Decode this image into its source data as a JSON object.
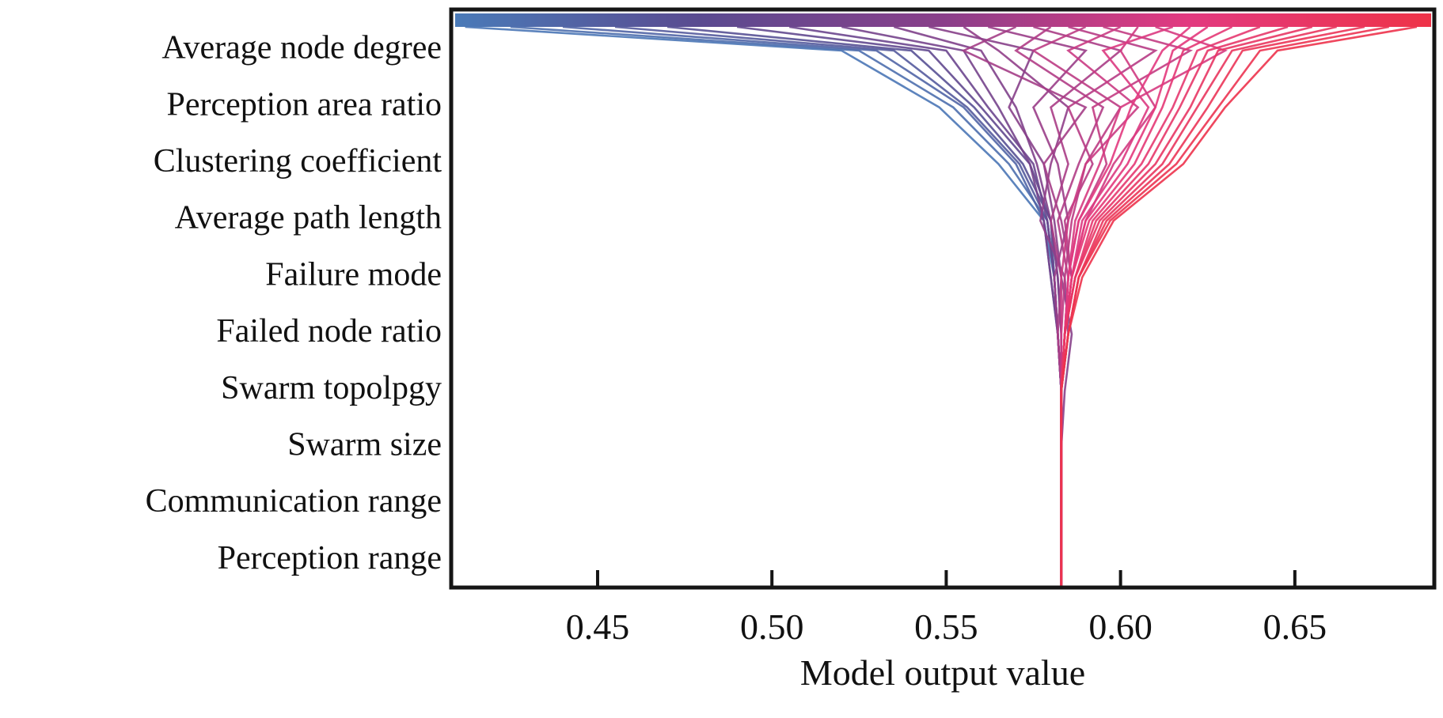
{
  "chart_data": {
    "type": "line",
    "subtype": "decision-plot",
    "title": "",
    "xlabel": "Model output value",
    "ylabel": "",
    "xlim": [
      0.408,
      0.69
    ],
    "xticks": [
      0.45,
      0.5,
      0.55,
      0.6,
      0.65
    ],
    "xtick_labels": [
      "0.45",
      "0.50",
      "0.55",
      "0.60",
      "0.65"
    ],
    "base_value": 0.583,
    "features_top_to_bottom": [
      "Average node degree",
      "Perception area ratio",
      "Clustering coefficient",
      "Average path length",
      "Failure mode",
      "Failed node ratio",
      "Swarm topolpgy",
      "Swarm size",
      "Communication range",
      "Perception range"
    ],
    "colorbar": {
      "position": "top",
      "colors": [
        "#4a7ab8",
        "#5a4b90",
        "#8a3f8a",
        "#e23a80",
        "#ee3348"
      ]
    },
    "grid": false,
    "series_note_order": "each line: final output, then cumulative value at each feature row from top to bottom",
    "lines": [
      [
        0.412,
        0.52,
        0.548,
        0.565,
        0.578,
        0.581,
        0.582,
        0.583,
        0.583,
        0.583,
        0.583
      ],
      [
        0.425,
        0.525,
        0.552,
        0.568,
        0.579,
        0.581,
        0.582,
        0.583,
        0.583,
        0.583,
        0.583
      ],
      [
        0.44,
        0.53,
        0.555,
        0.57,
        0.578,
        0.58,
        0.582,
        0.583,
        0.583,
        0.583,
        0.583
      ],
      [
        0.455,
        0.535,
        0.556,
        0.571,
        0.579,
        0.581,
        0.582,
        0.583,
        0.583,
        0.583,
        0.583
      ],
      [
        0.47,
        0.54,
        0.558,
        0.572,
        0.58,
        0.581,
        0.582,
        0.583,
        0.583,
        0.583,
        0.583
      ],
      [
        0.49,
        0.545,
        0.56,
        0.574,
        0.58,
        0.582,
        0.583,
        0.583,
        0.583,
        0.583,
        0.583
      ],
      [
        0.505,
        0.55,
        0.562,
        0.575,
        0.579,
        0.581,
        0.582,
        0.583,
        0.583,
        0.583,
        0.583
      ],
      [
        0.52,
        0.555,
        0.565,
        0.574,
        0.578,
        0.58,
        0.582,
        0.583,
        0.583,
        0.583,
        0.583
      ],
      [
        0.535,
        0.56,
        0.57,
        0.576,
        0.58,
        0.582,
        0.583,
        0.583,
        0.583,
        0.583,
        0.583
      ],
      [
        0.545,
        0.575,
        0.568,
        0.578,
        0.581,
        0.583,
        0.586,
        0.584,
        0.583,
        0.583,
        0.583
      ],
      [
        0.555,
        0.565,
        0.585,
        0.58,
        0.577,
        0.584,
        0.585,
        0.583,
        0.583,
        0.583,
        0.583
      ],
      [
        0.562,
        0.59,
        0.575,
        0.582,
        0.585,
        0.581,
        0.582,
        0.583,
        0.583,
        0.583,
        0.583
      ],
      [
        0.57,
        0.555,
        0.59,
        0.578,
        0.583,
        0.586,
        0.584,
        0.583,
        0.583,
        0.583,
        0.583
      ],
      [
        0.575,
        0.6,
        0.58,
        0.585,
        0.58,
        0.583,
        0.582,
        0.583,
        0.583,
        0.583,
        0.583
      ],
      [
        0.58,
        0.57,
        0.595,
        0.588,
        0.582,
        0.585,
        0.584,
        0.583,
        0.583,
        0.583,
        0.583
      ],
      [
        0.585,
        0.61,
        0.585,
        0.592,
        0.584,
        0.586,
        0.584,
        0.583,
        0.583,
        0.583,
        0.583
      ],
      [
        0.59,
        0.575,
        0.6,
        0.59,
        0.586,
        0.584,
        0.583,
        0.583,
        0.583,
        0.583,
        0.583
      ],
      [
        0.595,
        0.62,
        0.592,
        0.596,
        0.588,
        0.585,
        0.584,
        0.583,
        0.583,
        0.583,
        0.583
      ],
      [
        0.6,
        0.585,
        0.605,
        0.59,
        0.585,
        0.583,
        0.583,
        0.583,
        0.583,
        0.583,
        0.583
      ],
      [
        0.605,
        0.6,
        0.61,
        0.598,
        0.59,
        0.586,
        0.584,
        0.583,
        0.583,
        0.583,
        0.583
      ],
      [
        0.61,
        0.63,
        0.6,
        0.594,
        0.587,
        0.585,
        0.584,
        0.583,
        0.583,
        0.583,
        0.583
      ],
      [
        0.615,
        0.595,
        0.608,
        0.6,
        0.589,
        0.586,
        0.584,
        0.583,
        0.583,
        0.583,
        0.583
      ],
      [
        0.62,
        0.612,
        0.603,
        0.597,
        0.588,
        0.585,
        0.584,
        0.583,
        0.583,
        0.583,
        0.583
      ],
      [
        0.625,
        0.615,
        0.61,
        0.602,
        0.59,
        0.586,
        0.584,
        0.583,
        0.583,
        0.583,
        0.583
      ],
      [
        0.632,
        0.618,
        0.612,
        0.604,
        0.591,
        0.586,
        0.584,
        0.583,
        0.583,
        0.583,
        0.583
      ],
      [
        0.64,
        0.622,
        0.615,
        0.606,
        0.592,
        0.587,
        0.584,
        0.583,
        0.583,
        0.583,
        0.583
      ],
      [
        0.648,
        0.625,
        0.617,
        0.608,
        0.593,
        0.587,
        0.584,
        0.583,
        0.583,
        0.583,
        0.583
      ],
      [
        0.655,
        0.628,
        0.62,
        0.61,
        0.594,
        0.587,
        0.584,
        0.583,
        0.583,
        0.583,
        0.583
      ],
      [
        0.662,
        0.632,
        0.622,
        0.612,
        0.595,
        0.588,
        0.585,
        0.583,
        0.583,
        0.583,
        0.583
      ],
      [
        0.67,
        0.635,
        0.625,
        0.614,
        0.596,
        0.588,
        0.585,
        0.583,
        0.583,
        0.583,
        0.583
      ],
      [
        0.677,
        0.64,
        0.628,
        0.616,
        0.597,
        0.588,
        0.585,
        0.583,
        0.583,
        0.583,
        0.583
      ],
      [
        0.685,
        0.645,
        0.63,
        0.618,
        0.598,
        0.589,
        0.585,
        0.583,
        0.583,
        0.583,
        0.583
      ]
    ]
  }
}
